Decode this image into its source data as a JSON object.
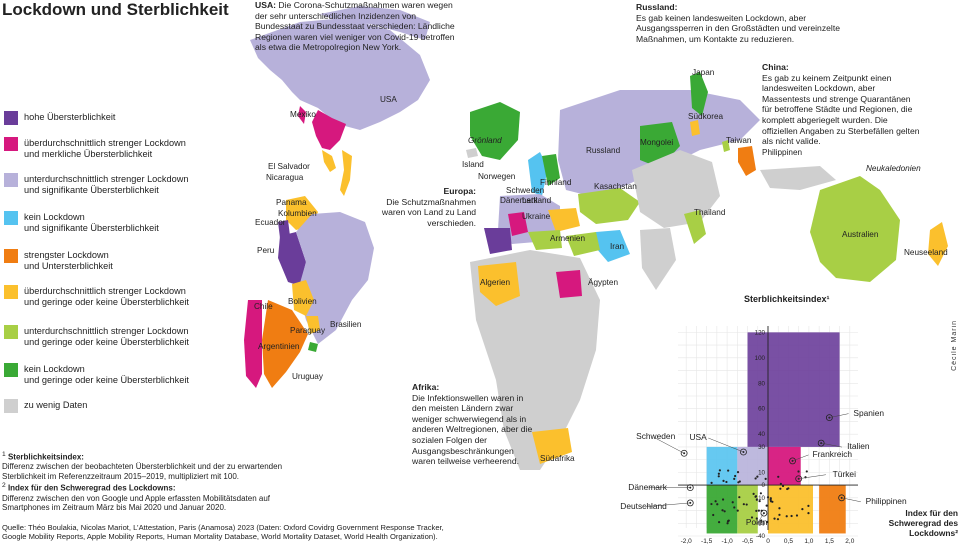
{
  "title": "Lockdown und Sterblichkeit",
  "legend": [
    {
      "color": "#6a3d9a",
      "label": "hohe Übersterblichkeit"
    },
    {
      "color": "#d6187e",
      "label": "überdurchschnittlich strenger Lockdown\nund merkliche Übersterblichkeit"
    },
    {
      "color": "#b7b1da",
      "label": "unterdurchschnittlich strenger Lockdown\nund signifikante Übersterblichkeit"
    },
    {
      "color": "#55c3f0",
      "label": "kein Lockdown\nund signifikante Übersterblichkeit"
    },
    {
      "color": "#f07d12",
      "label": "strengster Lockdown\nund Untersterblichkeit"
    },
    {
      "color": "#fbc02d",
      "label": "überdurchschnittlich strenger Lockdown\nund geringe oder keine Übersterblichkeit"
    },
    {
      "color": "#a8cf45",
      "label": "unterdurchschnittlich strenger Lockdown\nund geringe oder keine Übersterblichkeit"
    },
    {
      "color": "#3aa935",
      "label": "kein Lockdown\nund geringe oder keine Übersterblichkeit"
    },
    {
      "color": "#cfcfcf",
      "label": "zu wenig Daten"
    }
  ],
  "notes": {
    "n1_head": "Sterblichkeitsindex:",
    "n1_text": "Differenz zwischen der beobachteten Übersterblichkeit und der zu erwartenden Sterblichkeit im Referenzzeitraum 2015–2019, multipliziert mit 100.",
    "n2_head": "Index für den Schweregrad des Lockdowns:",
    "n2_text": "Differenz zwischen den von Google und Apple erfassten Mobilitätsdaten auf Smartphones im Zeitraum März bis Mai 2020 und Januar 2020.",
    "source": "Quelle: Théo Boulakia, Nicolas Mariot, L’Attestation, Paris (Anamosa) 2023 (Daten: Oxford Covidrg Government Response Tracker, Google Mobility Reports, Apple Mobility Reports, Human Mortality Database, World Mortality Dataset, World Health Organization)."
  },
  "annotations": {
    "usa": {
      "head": "USA:",
      "text": "Die Corona-Schutzmaßnahmen waren wegen der sehr unterschiedlichen  Inzidenzen von Bundesstaat zu Bundesstaat verschieden: Ländliche Regionen waren viel weniger von Covid-19 betroffen als etwa die Metropolregion New York."
    },
    "russland": {
      "head": "Russland:",
      "text": "Es gab keinen landesweiten Lockdown, aber Ausgangssperren in den Großstädten und vereinzelte Maßnahmen, um Kontakte zu reduzieren."
    },
    "china": {
      "head": "China:",
      "text": "Es gab zu keinem Zeitpunkt einen landesweiten Lockdown, aber Massentests und strenge Quarantänen für betroffene Städte und Regionen, die komplett abgeriegelt wurden. Die offiziellen Angaben zu Sterbefällen gelten als nicht valide."
    },
    "europa": {
      "head": "Europa:",
      "text": "Die Schutzmaßnahmen waren von Land zu Land verschieden."
    },
    "afrika": {
      "head": "Afrika:",
      "text": "Die Infektionswellen waren in den meisten Ländern zwar weniger schwerwiegend als in anderen Weltregionen, aber die sozialen Folgen der Ausgangsbeschränkungen waren teilweise verheerend."
    }
  },
  "country_labels": {
    "usa": "USA",
    "mexiko": "Mexiko",
    "elsalvador": "El Salvador",
    "nicaragua": "Nicaragua",
    "panama": "Panama",
    "kolumbien": "Kolumbien",
    "ecuador": "Ecuador",
    "peru": "Peru",
    "bolivien": "Bolivien",
    "chile": "Chile",
    "paraguay": "Paraguay",
    "brasilien": "Brasilien",
    "argentinien": "Argentinien",
    "uruguay": "Uruguay",
    "groenland": "Grönland",
    "island": "Island",
    "norwegen": "Norwegen",
    "schweden": "Schweden",
    "daenemark": "Dänemark",
    "finnland": "Finnland",
    "lettland": "Lettland",
    "ukraine": "Ukraine",
    "armenien": "Armenien",
    "russland": "Russland",
    "kasachstan": "Kasachstan",
    "mongolei": "Mongolei",
    "iran": "Iran",
    "aegypten": "Ägypten",
    "algerien": "Algerien",
    "suedafrika": "Südafrika",
    "japan": "Japan",
    "suedkorea": "Südkorea",
    "taiwan": "Taiwan",
    "philippinen": "Philippinen",
    "thailand": "Thailand",
    "neukaledonien": "Neukaledonien",
    "australien": "Australien",
    "neuseeland": "Neuseeland"
  },
  "credit": "Cécile Marin",
  "chart_data": {
    "type": "scatter",
    "ylabel": "Sterblichkeitsindex¹",
    "xlabel": "Index für den Schweregrad des Lockdowns²",
    "xlim": [
      -2.2,
      2.2
    ],
    "ylim": [
      -40,
      125
    ],
    "xticks": [
      -2.0,
      -1.5,
      -1.0,
      -0.5,
      0,
      0.5,
      1.0,
      1.5,
      2.0
    ],
    "xtick_labels": [
      "-2,0",
      "-1,5",
      "-1,0",
      "-0,5",
      "0",
      "0,5",
      "1,0",
      "1,5",
      "2,0"
    ],
    "yticks": [
      -40,
      -30,
      -10,
      0,
      10,
      30,
      40,
      60,
      80,
      100,
      120
    ],
    "labeled_points": [
      {
        "name": "Spanien",
        "x": 1.5,
        "y": 53
      },
      {
        "name": "Italien",
        "x": 1.3,
        "y": 33
      },
      {
        "name": "USA",
        "x": -0.6,
        "y": 26
      },
      {
        "name": "Schweden",
        "x": -2.05,
        "y": 25
      },
      {
        "name": "Frankreich",
        "x": 0.6,
        "y": 19
      },
      {
        "name": "Türkei",
        "x": 0.75,
        "y": 5
      },
      {
        "name": "Dänemark",
        "x": -1.9,
        "y": -2
      },
      {
        "name": "Philippinen",
        "x": 1.8,
        "y": -10
      },
      {
        "name": "Deutschland",
        "x": -1.9,
        "y": -14
      },
      {
        "name": "Polen",
        "x": -0.1,
        "y": -22
      }
    ]
  }
}
